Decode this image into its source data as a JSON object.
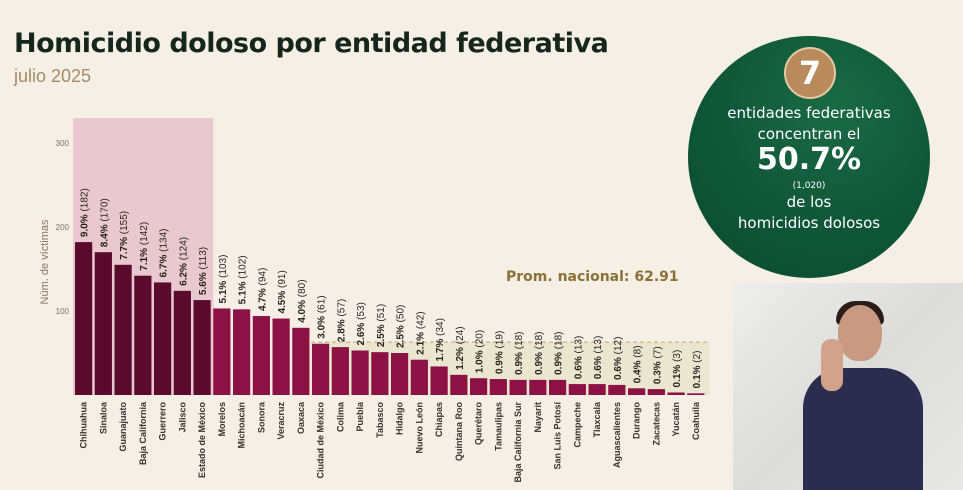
{
  "header": {
    "title": "Homicidio doloso por entidad federativa",
    "subtitle": "julio 2025"
  },
  "summary": {
    "badge_number": "7",
    "line1": "entidades federativas",
    "line2": "concentran el",
    "percent": "50.7%",
    "count": "(1,020)",
    "line3": "de los",
    "line4": "homicidios dolosos"
  },
  "interpreter": {
    "description": "sign-language-interpreter-video"
  },
  "colors": {
    "background": "#f6efe5",
    "top7_highlight": "#e9c8cf",
    "top7_bar": "#5a0b2c",
    "bar": "#8c1246",
    "avg_band": "#ebe6cf",
    "avg_line": "#b8a96a",
    "avg_label": "#8a7235",
    "circle_green": "#0f5638",
    "badge_gold": "#b88a5c"
  },
  "chart_data": {
    "type": "bar",
    "title": "Homicidio doloso por entidad federativa",
    "subtitle": "julio 2025",
    "xlabel": "",
    "ylabel": "Núm. de víctimas",
    "ylim": [
      0,
      300
    ],
    "yticks": [
      100,
      200,
      300
    ],
    "grid": false,
    "reference_line": {
      "label": "Prom. nacional: 62.91",
      "value": 62.91
    },
    "highlight_count": 7,
    "categories": [
      "Chihuahua",
      "Sinaloa",
      "Guanajuato",
      "Baja California",
      "Guerrero",
      "Jalisco",
      "Estado de México",
      "Morelos",
      "Michoacán",
      "Sonora",
      "Veracruz",
      "Oaxaca",
      "Ciudad de México",
      "Colima",
      "Puebla",
      "Tabasco",
      "Hidalgo",
      "Nuevo León",
      "Chiapas",
      "Quintana Roo",
      "Querétaro",
      "Tamaulipas",
      "Baja California Sur",
      "Nayarit",
      "San Luis Potosí",
      "Campeche",
      "Tlaxcala",
      "Aguascalientes",
      "Durango",
      "Zacatecas",
      "Yucatán",
      "Coahuila"
    ],
    "values": [
      182,
      170,
      155,
      142,
      134,
      124,
      113,
      103,
      102,
      94,
      91,
      80,
      61,
      57,
      53,
      51,
      50,
      42,
      34,
      24,
      20,
      19,
      18,
      18,
      18,
      13,
      13,
      12,
      8,
      7,
      3,
      2
    ],
    "percent_labels": [
      "9.0%",
      "8.4%",
      "7.7%",
      "7.1%",
      "6.7%",
      "6.2%",
      "5.6%",
      "5.1%",
      "5.1%",
      "4.7%",
      "4.5%",
      "4.0%",
      "3.0%",
      "2.8%",
      "2.6%",
      "2.5%",
      "2.5%",
      "2.1%",
      "1.7%",
      "1.2%",
      "1.0%",
      "0.9%",
      "0.9%",
      "0.9%",
      "0.9%",
      "0.6%",
      "0.6%",
      "0.6%",
      "0.4%",
      "0.3%",
      "0.1%",
      "0.1%"
    ]
  }
}
